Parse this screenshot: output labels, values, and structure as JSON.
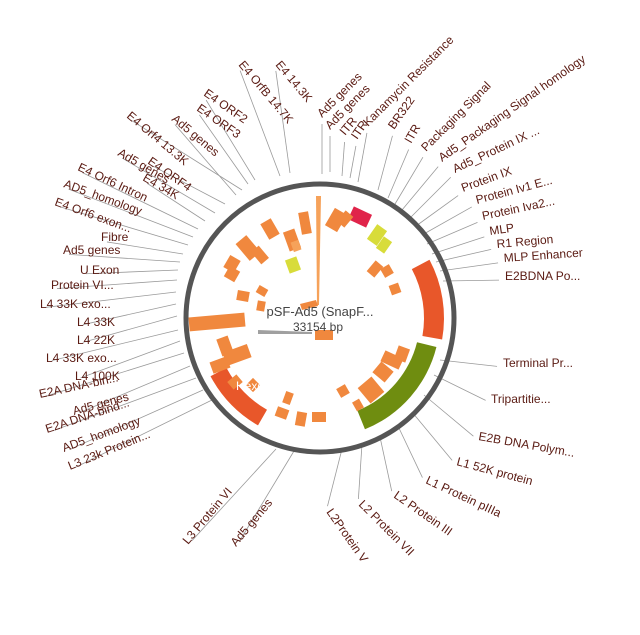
{
  "map": {
    "title": "pSF-Ad5 (SnapF...",
    "size": "33154 bp",
    "inner_label": "Hexon"
  },
  "labels": [
    "E4 OrfB 14.7K",
    "E4 14.3K",
    "Ad5 genes",
    "E4 ORF2",
    "E4 ORF3",
    "E4 Orf4 13.3K",
    "Ad5 genes",
    "E4 ORF4",
    "Ad5 genes",
    "E4 34K",
    "E4 Orf6 Intron",
    "AD5_homology",
    "E4 Orf6 exon...",
    "Fibre",
    "Ad5 genes",
    "U Exon",
    "Protein VI...",
    "L4 33K exo...",
    "L4 33K",
    "L4 22K",
    "L4 33K exo...",
    "L4 100K",
    "E2A DNA-bin...",
    "Ad5 genes",
    "E2A DNA-bind...",
    "AD5_homology",
    "L3 23k Protein...",
    "Ad5 genes",
    "ITR",
    "ITR",
    "Kanamycin Resistance",
    "BR322",
    "ITR",
    "Packaging Signal",
    "Ad5_Packaging Signal homology",
    "Ad5_Protein IX ...",
    "Protein IX",
    "Protein Iv1 E...",
    "Protein Iva2...",
    "MLP",
    "R1 Region",
    "MLP Enhancer",
    "E2BDNA Po...",
    "Terminal Pr...",
    "Tripartitie...",
    "E2B DNA Polym...",
    "L1 52K protein",
    "L1 Protein pIIIa",
    "L2 Protein III",
    "L2 Protein VII",
    "L2Protein V",
    "Ad5 genes",
    "L3 Protein VI"
  ],
  "colors": {
    "ring": "#555555",
    "feature_orange": "#f0883e",
    "feature_light": "#f6a25a",
    "feature_red": "#e8572a",
    "feature_green": "#6f8d10",
    "feature_yellow": "#d8dc3a",
    "feature_pink": "#e0244a",
    "label": "#5a1a12"
  }
}
